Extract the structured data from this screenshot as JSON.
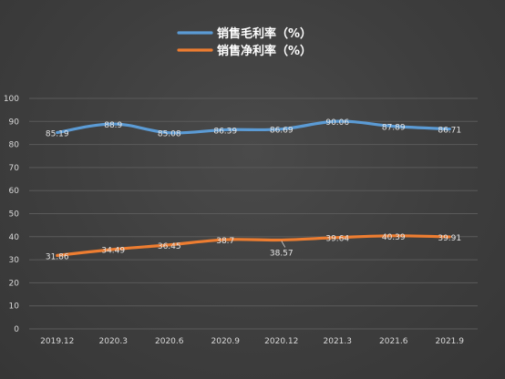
{
  "chart_data": {
    "type": "line",
    "categories": [
      "2019.12",
      "2020.3",
      "2020.6",
      "2020.9",
      "2020.12",
      "2021.3",
      "2021.6",
      "2021.9"
    ],
    "ylim": [
      0,
      100
    ],
    "yticks": [
      0,
      10,
      20,
      30,
      40,
      50,
      60,
      70,
      80,
      90,
      100
    ],
    "grid": true,
    "legend_position": "top-center",
    "series": [
      {
        "name": "销售毛利率（%）",
        "color": "#5b9bd5",
        "values": [
          85.19,
          88.9,
          85.08,
          86.39,
          86.69,
          90.06,
          87.89,
          86.71
        ],
        "labels": [
          "85.19",
          "88.9",
          "85.08",
          "86.39",
          "86.69",
          "90.06",
          "87.89",
          "86.71"
        ]
      },
      {
        "name": "销售净利率（%）",
        "color": "#ed7d31",
        "values": [
          31.86,
          34.49,
          36.45,
          38.7,
          38.57,
          39.64,
          40.39,
          39.91
        ],
        "labels": [
          "31.86",
          "34.49",
          "36.45",
          "38.7",
          "38.57",
          "39.64",
          "40.39",
          "39.91"
        ]
      }
    ]
  },
  "colors": {
    "background": "#404040",
    "grid": "#5a5a5a",
    "axis_text": "#d9d9d9",
    "legend_text": "#ffffff"
  }
}
